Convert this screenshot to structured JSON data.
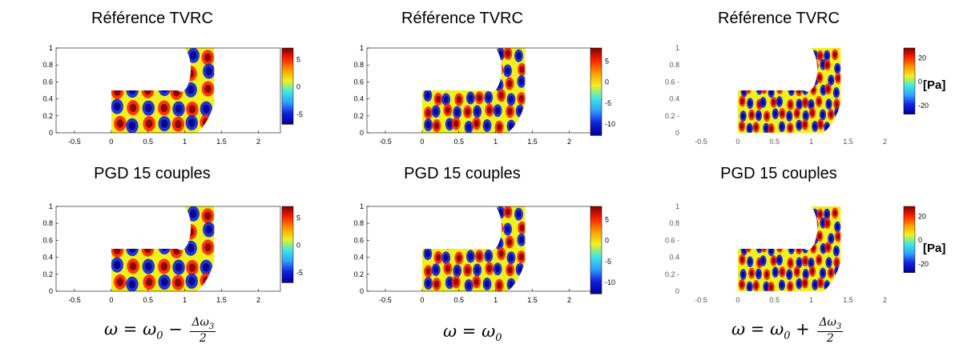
{
  "panel_titles": {
    "reference": "Référence TVRC",
    "pgd": "PGD 15 couples"
  },
  "formulas": {
    "left": {
      "lhs": "ω = ω",
      "sub": "0",
      "op": " − ",
      "num": "Δω",
      "num_sub": "3",
      "den": "2"
    },
    "middle": {
      "lhs": "ω = ω",
      "sub": "0"
    },
    "right": {
      "lhs": "ω = ω",
      "sub": "0",
      "op": " + ",
      "num": "Δω",
      "num_sub": "3",
      "den": "2"
    }
  },
  "unit_label": "[Pa]",
  "axes": {
    "x_ticks": [
      "-0.5",
      "0",
      "0.5",
      "1",
      "1.5",
      "2"
    ],
    "x_ticks_faded": [
      "-0.5",
      "0",
      "0.5",
      "1",
      "1.5",
      "2"
    ],
    "y_ticks": [
      "0",
      "0.2",
      "0.4",
      "0.6",
      "0.8",
      "1"
    ],
    "y_ticks_faded": [
      "0",
      "0.2 -",
      "0.4",
      "0.6 -",
      "0.8",
      "1"
    ]
  },
  "colorbars": {
    "left": [
      "5",
      "0",
      "-5"
    ],
    "middle": [
      "5",
      "0",
      "-5",
      "-10"
    ],
    "right": [
      "20",
      "0",
      "-20"
    ]
  },
  "colors": {
    "dark_red": "#7f0000",
    "red": "#ff2000",
    "orange": "#ff9a00",
    "yellow": "#f0f020",
    "cyan": "#40e8e0",
    "light_blue": "#30a0ff",
    "blue": "#1020e0",
    "dark_blue": "#00008f"
  }
}
